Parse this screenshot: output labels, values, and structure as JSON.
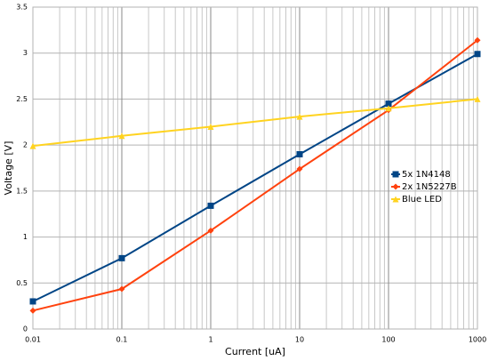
{
  "chart_data": {
    "type": "line",
    "x_label": "Current [uA]",
    "y_label": "Voltage [V]",
    "x": [
      0.01,
      0.1,
      1,
      10,
      100,
      1000
    ],
    "x_scale": "log",
    "xlim": [
      0.01,
      1000
    ],
    "xticks": [
      0.01,
      0.1,
      1,
      10,
      100,
      1000
    ],
    "ylim": [
      0,
      3.5
    ],
    "yticks": [
      0,
      0.5,
      1,
      1.5,
      2,
      2.5,
      3,
      3.5
    ],
    "grid": true,
    "minor_grid": true,
    "legend": "right",
    "series": [
      {
        "name": "5x 1N4148",
        "color": "#004586",
        "marker": "square",
        "values": [
          0.3,
          0.77,
          1.34,
          1.9,
          2.45,
          2.99
        ]
      },
      {
        "name": "2x 1N5227B",
        "color": "#ff420e",
        "marker": "diamond",
        "values": [
          0.2,
          0.435,
          1.07,
          1.74,
          2.38,
          3.14
        ]
      },
      {
        "name": "Blue LED",
        "color": "#ffd320",
        "marker": "triangle",
        "values": [
          1.99,
          2.1,
          2.2,
          2.31,
          2.4,
          2.5
        ]
      }
    ]
  }
}
